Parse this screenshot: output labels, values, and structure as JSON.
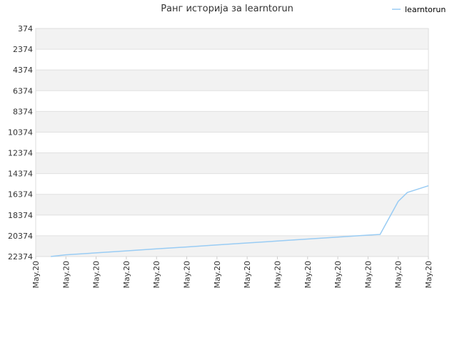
{
  "chart_data": {
    "type": "line",
    "title": "Ранг историја за learntorun",
    "xlabel": "",
    "ylabel": "",
    "y_reversed": true,
    "ylim": [
      374,
      22374
    ],
    "y_ticks": [
      374,
      2374,
      4374,
      6374,
      8374,
      10374,
      12374,
      14374,
      16374,
      18374,
      20374,
      22374
    ],
    "x_ticks": [
      "May.20",
      "May.20",
      "May.20",
      "May.20",
      "May.20",
      "May.20",
      "May.20",
      "May.20",
      "May.20",
      "May.20",
      "May.20",
      "May.20",
      "May.20",
      "May.20"
    ],
    "legend": "top-right",
    "grid": true,
    "series": [
      {
        "name": "learntorun",
        "color": "#99ccf4",
        "points": [
          [
            0.5,
            22374
          ],
          [
            1,
            22210
          ],
          [
            2,
            22020
          ],
          [
            3,
            21830
          ],
          [
            4,
            21640
          ],
          [
            5,
            21450
          ],
          [
            6,
            21260
          ],
          [
            7,
            21070
          ],
          [
            8,
            20880
          ],
          [
            9,
            20690
          ],
          [
            10,
            20500
          ],
          [
            11,
            20310
          ],
          [
            11.4,
            20240
          ],
          [
            12,
            17050
          ],
          [
            12.3,
            16200
          ],
          [
            13,
            15550
          ]
        ]
      }
    ]
  }
}
